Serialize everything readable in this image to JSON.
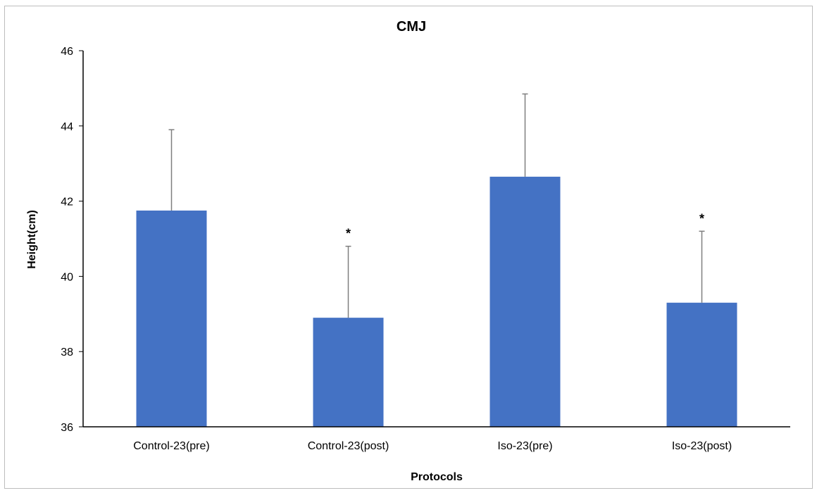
{
  "chart_data": {
    "type": "bar",
    "title": "CMJ",
    "xlabel": "Protocols",
    "ylabel": "Height(cm)",
    "ylim": [
      36,
      46
    ],
    "yticks": [
      36,
      38,
      40,
      42,
      44,
      46
    ],
    "grid": false,
    "legend": "none",
    "categories": [
      "Control-23(pre)",
      "Control-23(post)",
      "Iso-23(pre)",
      "Iso-23(post)"
    ],
    "series": [
      {
        "values": [
          41.75,
          38.9,
          42.65,
          39.3
        ],
        "error_upper": [
          2.15,
          1.9,
          2.2,
          1.9
        ],
        "significance": [
          "",
          "*",
          "",
          "*"
        ]
      }
    ],
    "colors": {
      "bar": "#4472C4",
      "error_bar": "#7f7f7f",
      "axis": "#000000"
    }
  }
}
